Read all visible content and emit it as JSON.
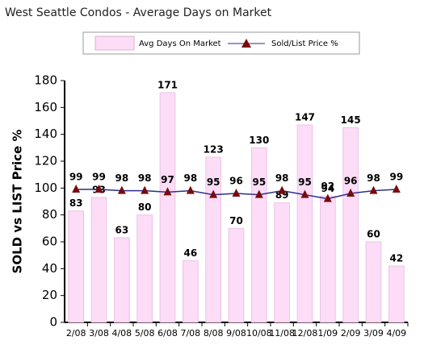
{
  "chart_data": {
    "type": "bar-line",
    "title": "West Seattle Condos - Average Days on Market",
    "y_label": "SOLD vs LIST Price %",
    "categories": [
      "2/08",
      "3/08",
      "4/08",
      "5/08",
      "6/08",
      "7/08",
      "8/08",
      "9/08",
      "10/08",
      "11/08",
      "12/08",
      "1/09",
      "2/09",
      "3/09",
      "4/09"
    ],
    "series": [
      {
        "name": "Avg Days On Market",
        "type": "bar",
        "color": "#fcdcf6",
        "values": [
          83,
          93,
          63,
          80,
          171,
          46,
          123,
          70,
          130,
          89,
          147,
          94,
          145,
          60,
          42
        ]
      },
      {
        "name": "Sold/List Price %",
        "type": "line",
        "color": "#2b2f8c",
        "marker_color": "#7a0a0a",
        "values": [
          99,
          99,
          98,
          98,
          97,
          98,
          95,
          96,
          95,
          98,
          95,
          92,
          96,
          98,
          99
        ]
      }
    ],
    "ylim": [
      0,
      180
    ],
    "yticks": [
      0,
      20,
      40,
      60,
      80,
      100,
      120,
      140,
      160,
      180
    ],
    "grid": false
  }
}
